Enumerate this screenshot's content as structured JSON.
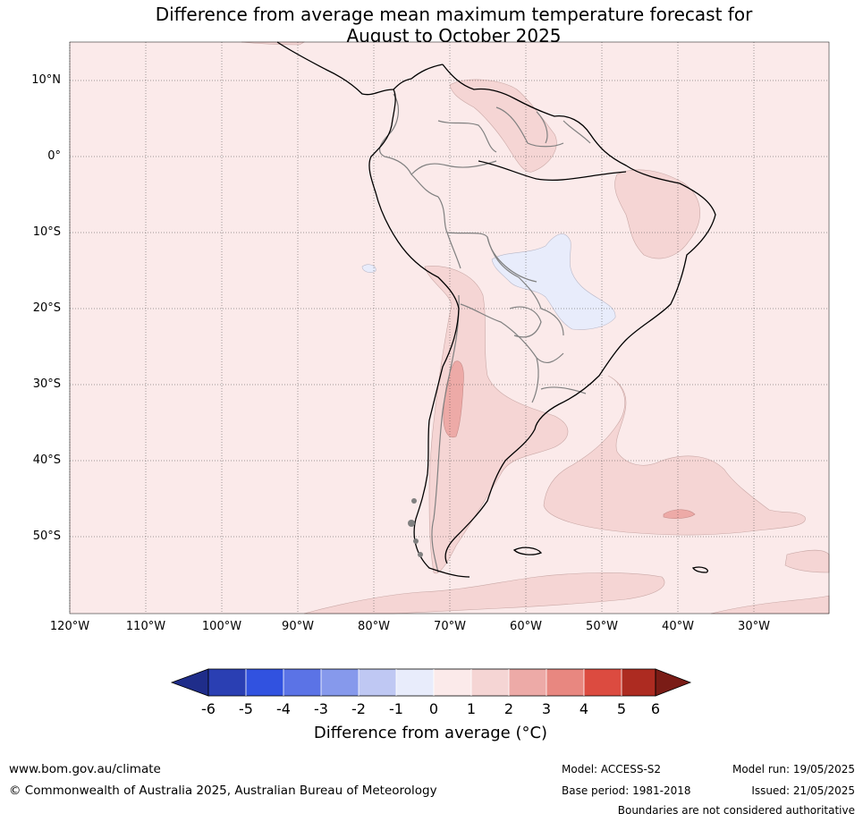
{
  "title_line1": "Difference from average mean maximum temperature forecast for",
  "title_line2": "August to October 2025",
  "lat_labels": [
    "10°N",
    "0°",
    "10°S",
    "20°S",
    "30°S",
    "40°S",
    "50°S"
  ],
  "lon_labels": [
    "120°W",
    "110°W",
    "100°W",
    "90°W",
    "80°W",
    "70°W",
    "60°W",
    "50°W",
    "40°W",
    "30°W"
  ],
  "colorbar": {
    "ticks": [
      "-6",
      "-5",
      "-4",
      "-3",
      "-2",
      "-1",
      "0",
      "1",
      "2",
      "3",
      "4",
      "5",
      "6"
    ],
    "colors": [
      "#1f2d8a",
      "#2a3fb3",
      "#3152e0",
      "#5b73e6",
      "#8699ec",
      "#bfc8f3",
      "#e8ecfb",
      "#fbeaea",
      "#f5d5d4",
      "#edaaa7",
      "#e88780",
      "#dc4b40",
      "#ad2b21",
      "#7a1c16"
    ],
    "label": "Difference from average (°C)"
  },
  "footer": {
    "url": "www.bom.gov.au/climate",
    "copyright": "© Commonwealth of Australia 2025, Australian Bureau of Meteorology",
    "model": "Model: ACCESS-S2",
    "base_period": "Base period: 1981-2018",
    "model_run": "Model run: 19/05/2025",
    "issued": "Issued: 21/05/2025",
    "boundaries": "Boundaries are not considered authoritative"
  }
}
